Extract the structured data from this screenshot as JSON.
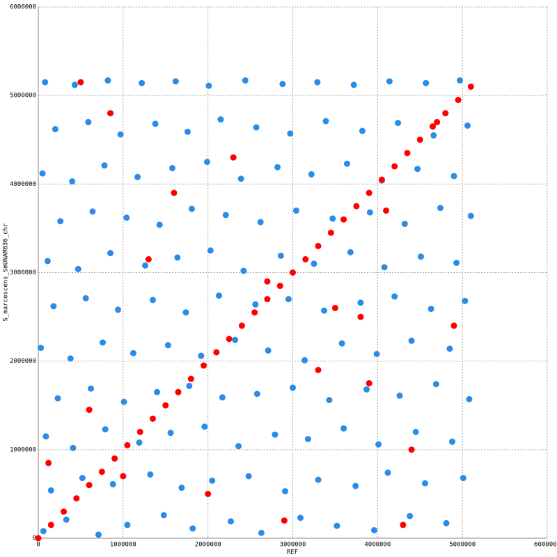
{
  "chart_data": {
    "type": "scatter",
    "xlabel": "REF",
    "ylabel": "S_marcescens_SmUNAM836_chr",
    "xlim": [
      0,
      6000000
    ],
    "ylim": [
      0,
      6000000
    ],
    "xticks": [
      0,
      1000000,
      2000000,
      3000000,
      4000000,
      5000000,
      6000000
    ],
    "yticks": [
      0,
      1000000,
      2000000,
      3000000,
      4000000,
      5000000,
      6000000
    ],
    "grid": true,
    "series": [
      {
        "color": "#2b8ce8",
        "x": [
          60000,
          330000,
          710000,
          1050000,
          1480000,
          1820000,
          2270000,
          2630000,
          3090000,
          3520000,
          3960000,
          4380000,
          4810000,
          150000,
          520000,
          880000,
          1320000,
          1690000,
          2050000,
          2480000,
          2910000,
          3300000,
          3740000,
          4120000,
          4560000,
          5010000,
          90000,
          410000,
          790000,
          1190000,
          1560000,
          1960000,
          2360000,
          2790000,
          3180000,
          3600000,
          4010000,
          4450000,
          4880000,
          230000,
          620000,
          1010000,
          1400000,
          1780000,
          2170000,
          2580000,
          3000000,
          3430000,
          3870000,
          4260000,
          4690000,
          5080000,
          30000,
          380000,
          760000,
          1120000,
          1530000,
          1920000,
          2320000,
          2710000,
          3140000,
          3580000,
          3990000,
          4400000,
          4850000,
          180000,
          560000,
          940000,
          1350000,
          1740000,
          2130000,
          2560000,
          2950000,
          3370000,
          3800000,
          4200000,
          4630000,
          5030000,
          110000,
          470000,
          850000,
          1260000,
          1640000,
          2030000,
          2420000,
          2860000,
          3250000,
          3680000,
          4080000,
          4510000,
          4930000,
          260000,
          640000,
          1040000,
          1430000,
          1810000,
          2210000,
          2620000,
          3040000,
          3470000,
          3910000,
          4320000,
          4740000,
          5100000,
          50000,
          400000,
          780000,
          1170000,
          1580000,
          1990000,
          2390000,
          2820000,
          3220000,
          3640000,
          4050000,
          4470000,
          4900000,
          200000,
          590000,
          970000,
          1380000,
          1760000,
          2150000,
          2570000,
          2970000,
          3390000,
          3820000,
          4240000,
          4660000,
          5060000,
          80000,
          430000,
          820000,
          1220000,
          1620000,
          2010000,
          2440000,
          2880000,
          3290000,
          3720000,
          4140000,
          4570000,
          4970000
        ],
        "values": [
          80000,
          210000,
          40000,
          150000,
          260000,
          110000,
          190000,
          60000,
          230000,
          140000,
          90000,
          250000,
          170000,
          540000,
          680000,
          610000,
          720000,
          570000,
          650000,
          700000,
          530000,
          660000,
          590000,
          740000,
          620000,
          680000,
          1150000,
          1020000,
          1230000,
          1080000,
          1190000,
          1260000,
          1040000,
          1170000,
          1120000,
          1240000,
          1060000,
          1200000,
          1090000,
          1580000,
          1690000,
          1540000,
          1650000,
          1720000,
          1590000,
          1630000,
          1700000,
          1560000,
          1680000,
          1610000,
          1740000,
          1570000,
          2150000,
          2030000,
          2210000,
          2090000,
          2180000,
          2060000,
          2240000,
          2120000,
          2010000,
          2200000,
          2080000,
          2230000,
          2140000,
          2620000,
          2710000,
          2580000,
          2690000,
          2550000,
          2740000,
          2640000,
          2700000,
          2570000,
          2660000,
          2730000,
          2590000,
          2680000,
          3130000,
          3040000,
          3220000,
          3080000,
          3170000,
          3250000,
          3020000,
          3190000,
          3100000,
          3230000,
          3060000,
          3180000,
          3110000,
          3580000,
          3690000,
          3620000,
          3540000,
          3720000,
          3650000,
          3570000,
          3700000,
          3610000,
          3680000,
          3550000,
          3730000,
          3640000,
          4120000,
          4030000,
          4210000,
          4080000,
          4180000,
          4250000,
          4060000,
          4190000,
          4110000,
          4230000,
          4040000,
          4170000,
          4090000,
          4620000,
          4700000,
          4560000,
          4680000,
          4590000,
          4730000,
          4640000,
          4570000,
          4710000,
          4600000,
          4690000,
          4550000,
          4660000,
          5150000,
          5120000,
          5170000,
          5140000,
          5160000,
          5110000,
          5170000,
          5130000,
          5150000,
          5120000,
          5160000,
          5140000,
          5170000
        ]
      },
      {
        "color": "#ff0000",
        "x": [
          0,
          150000,
          300000,
          450000,
          600000,
          750000,
          900000,
          1050000,
          1200000,
          1350000,
          1500000,
          1650000,
          1800000,
          1950000,
          2100000,
          2250000,
          2400000,
          2550000,
          2700000,
          2850000,
          3000000,
          3150000,
          3300000,
          3450000,
          3600000,
          3750000,
          3900000,
          4050000,
          4200000,
          4350000,
          4500000,
          4650000,
          4800000,
          4950000,
          5100000,
          120000,
          850000,
          1600000,
          2900000,
          3500000,
          4400000,
          4700000,
          1300000,
          2300000,
          3800000,
          600000,
          2000000,
          4100000,
          3300000,
          4900000,
          1000000,
          2700000,
          4300000,
          500000,
          3900000
        ],
        "values": [
          0,
          150000,
          300000,
          450000,
          600000,
          750000,
          900000,
          1050000,
          1200000,
          1350000,
          1500000,
          1650000,
          1800000,
          1950000,
          2100000,
          2250000,
          2400000,
          2550000,
          2700000,
          2850000,
          3000000,
          3150000,
          3300000,
          3450000,
          3600000,
          3750000,
          3900000,
          4050000,
          4200000,
          4350000,
          4500000,
          4650000,
          4800000,
          4950000,
          5100000,
          850000,
          4800000,
          3900000,
          200000,
          2600000,
          1000000,
          4700000,
          3150000,
          4300000,
          2500000,
          1450000,
          500000,
          3700000,
          1900000,
          2400000,
          700000,
          2900000,
          150000,
          5150000,
          1750000
        ]
      }
    ]
  }
}
